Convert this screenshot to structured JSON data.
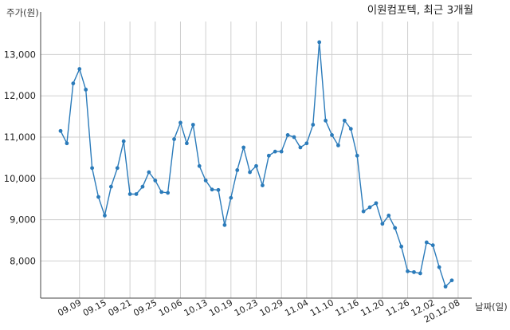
{
  "chart_data": {
    "type": "line",
    "title": "이원컴포텍, 최근 3개월",
    "xlabel": "날짜(일)",
    "ylabel": "주가(원)",
    "ylim": [
      7100,
      13800
    ],
    "yticks": [
      8000,
      9000,
      10000,
      11000,
      12000,
      13000
    ],
    "ytick_labels": [
      "8,000",
      "9,000",
      "10,000",
      "11,000",
      "12,000",
      "13,000"
    ],
    "grid": true,
    "color": "#2b7bba",
    "xtick_labels": [
      "09.09",
      "09.15",
      "09.21",
      "09.25",
      "10.06",
      "10.13",
      "10.19",
      "10.23",
      "10.29",
      "11.04",
      "11.10",
      "11.16",
      "11.20",
      "11.26",
      "12.02",
      "20.12.08"
    ],
    "xtick_positions": [
      3,
      7,
      11,
      15,
      19,
      23,
      27,
      31,
      35,
      39,
      43,
      47,
      51,
      55,
      59,
      63
    ],
    "values": [
      11150,
      10850,
      12300,
      12650,
      12150,
      10250,
      9550,
      9100,
      9800,
      10250,
      10900,
      9620,
      9620,
      9800,
      10150,
      9950,
      9670,
      9650,
      10950,
      11350,
      10850,
      11300,
      10300,
      9950,
      9730,
      9720,
      8870,
      9530,
      10200,
      10750,
      10150,
      10300,
      9830,
      10550,
      10650,
      10650,
      11050,
      11000,
      10750,
      10850,
      11300,
      13300,
      11400,
      11050,
      10800,
      11400,
      11200,
      10550,
      9200,
      9300,
      9400,
      8900,
      9100,
      8800,
      8350,
      7750,
      7730,
      7700,
      8450,
      8380,
      7850,
      7380,
      7530
    ]
  }
}
